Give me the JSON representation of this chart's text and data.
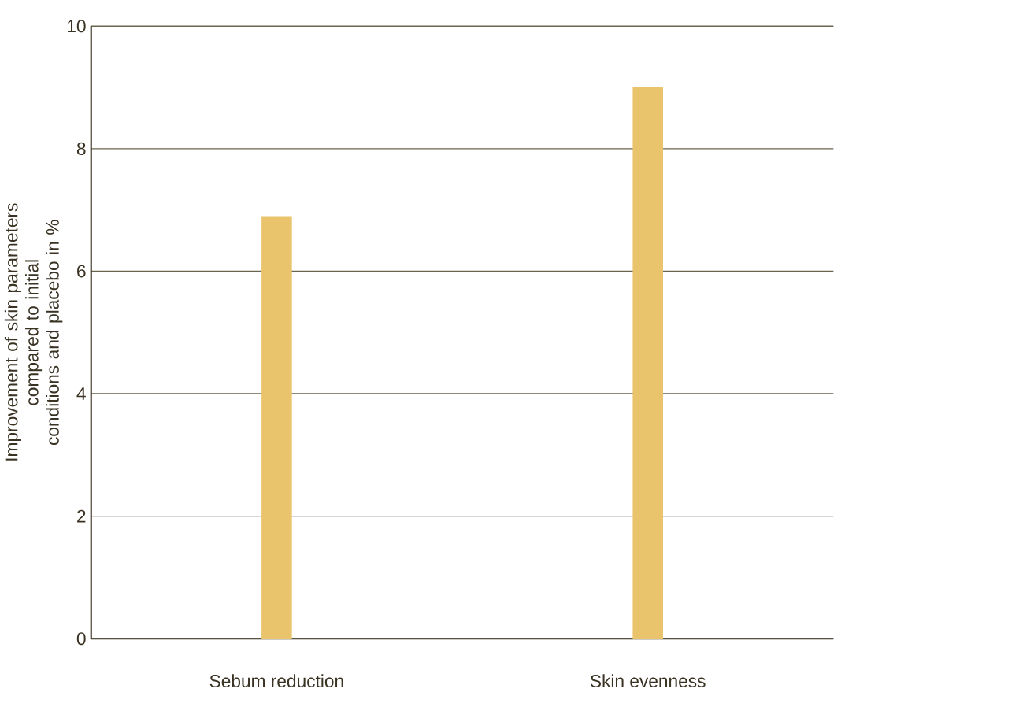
{
  "chart_data": {
    "type": "bar",
    "ylabel": "Improvement of skin parameters\ncompared to initial conditions and placebo in %",
    "categories": [
      "Sebum reduction",
      "Skin evenness"
    ],
    "values": [
      6.9,
      9.0
    ],
    "color": "#e9c46c",
    "ylim": [
      0,
      10
    ],
    "yticks": [
      0,
      2,
      4,
      6,
      8,
      10
    ],
    "grid": "y"
  }
}
